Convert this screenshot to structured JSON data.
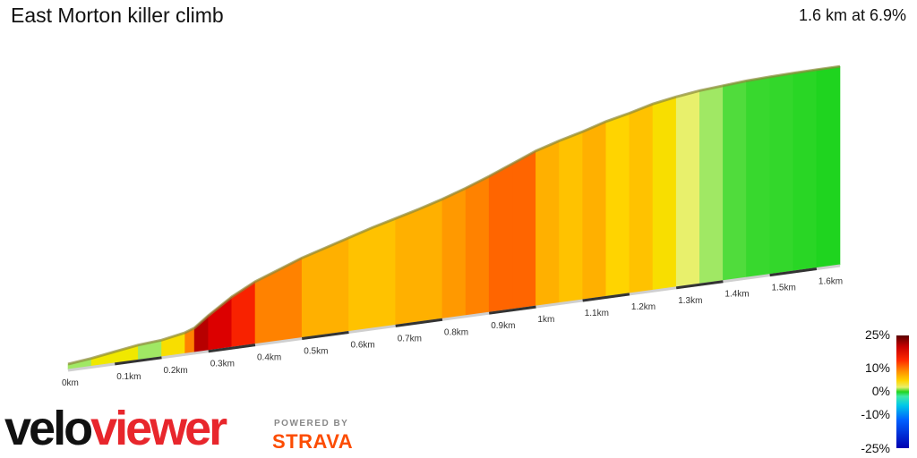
{
  "header": {
    "title": "East Morton killer climb",
    "summary": "1.6 km at 6.9%"
  },
  "chart_data": {
    "type": "area",
    "title": "East Morton killer climb",
    "xlabel": "",
    "ylabel": "",
    "distance_unit": "km",
    "x_ticks": [
      "0km",
      "0.1km",
      "0.2km",
      "0.3km",
      "0.4km",
      "0.5km",
      "0.6km",
      "0.7km",
      "0.8km",
      "0.9km",
      "1km",
      "1.1km",
      "1.2km",
      "1.3km",
      "1.4km",
      "1.5km",
      "1.6km"
    ],
    "total_distance": 1.65,
    "series": [
      {
        "x": [
          0,
          0.05,
          0.1,
          0.15,
          0.2,
          0.25,
          0.27,
          0.3,
          0.35,
          0.4,
          0.45,
          0.5,
          0.55,
          0.6,
          0.65,
          0.7,
          0.75,
          0.8,
          0.85,
          0.9,
          0.95,
          1.0,
          1.05,
          1.1,
          1.15,
          1.2,
          1.25,
          1.3,
          1.35,
          1.4,
          1.45,
          1.5,
          1.55,
          1.6,
          1.65
        ],
        "elevation": [
          0,
          1.5,
          3.5,
          5.5,
          6.5,
          9,
          11,
          17,
          26,
          33,
          38,
          43,
          47,
          51,
          55,
          58.5,
          62,
          66,
          70.5,
          75.5,
          81,
          86.5,
          90.5,
          94,
          98,
          101,
          104.5,
          106.8,
          108.5,
          109.5,
          110.5,
          111,
          111.3,
          111.5,
          111.5
        ],
        "gradient": [
          2,
          4,
          4,
          2,
          5,
          10,
          20,
          18,
          14,
          10,
          10,
          8,
          8,
          7,
          7,
          8,
          8,
          9,
          10,
          11,
          11,
          8,
          7,
          8,
          6,
          7,
          5,
          3,
          2,
          1,
          0.5,
          0.4,
          0.2,
          0
        ]
      }
    ],
    "legend": {
      "placement": "right",
      "labels": [
        "25%",
        "10%",
        "0%",
        "-10%",
        "-25%"
      ],
      "stops": [
        25,
        10,
        0,
        -10,
        -25
      ]
    }
  },
  "branding": {
    "logo_a": "velo",
    "logo_b": "viewer",
    "powered": "POWERED BY",
    "strava": "STRAVA"
  },
  "colors": {
    "accent_red": "#e8262c",
    "strava_orange": "#fc4c02"
  }
}
